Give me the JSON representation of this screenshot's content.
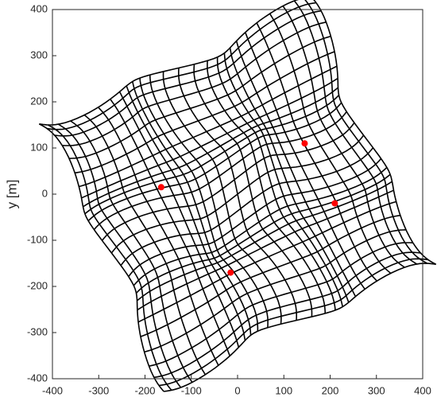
{
  "chart_data": {
    "type": "scatter",
    "ylabel": "y [m]",
    "x": [
      -165,
      145,
      210,
      -15
    ],
    "series": [
      {
        "color": "#ff0000",
        "values": [
          15,
          110,
          -20,
          -170
        ]
      }
    ],
    "xlim": [
      -400,
      400
    ],
    "ylim": [
      -400,
      400
    ],
    "xticks": [
      -400,
      -300,
      -200,
      -100,
      0,
      100,
      200,
      300,
      400
    ],
    "yticks": [
      -400,
      -300,
      -200,
      -100,
      0,
      100,
      200,
      300,
      400
    ]
  }
}
